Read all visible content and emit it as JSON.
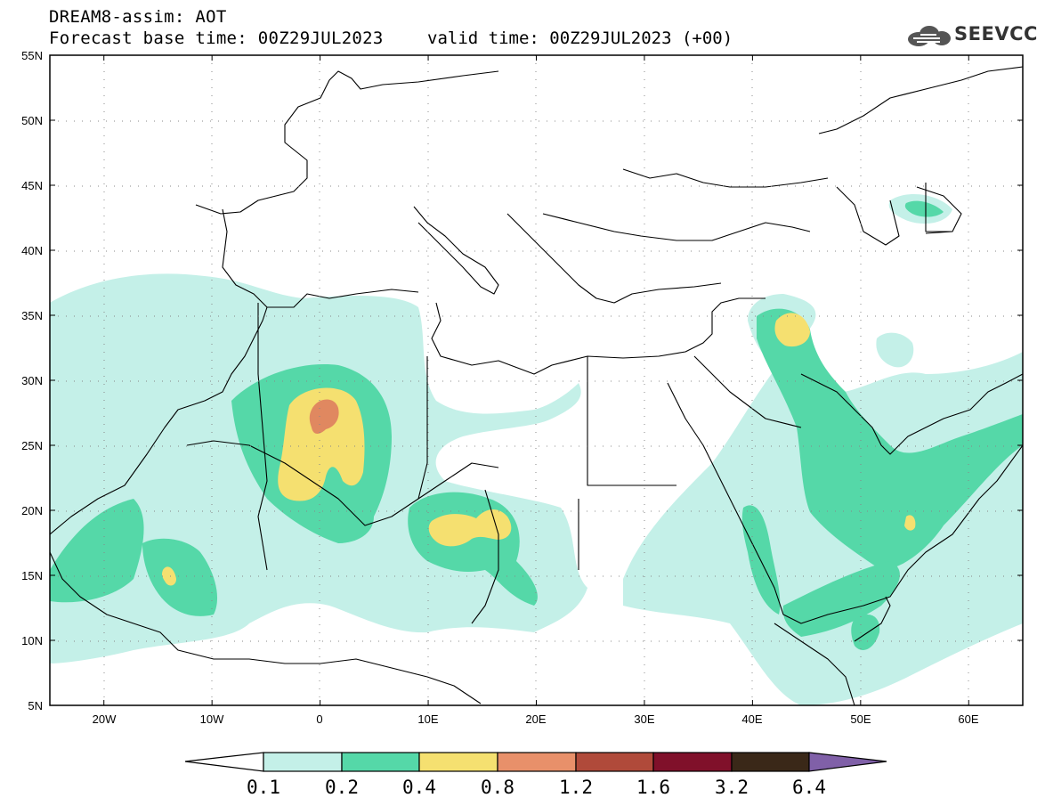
{
  "header": {
    "model_product": "DREAM8-assim: AOT",
    "base_time": "Forecast base time: 00Z29JUL2023",
    "valid_time": "valid time: 00Z29JUL2023 (+00)",
    "logo_text": "SEEVCCC"
  },
  "map": {
    "lat_labels": [
      "55N",
      "50N",
      "45N",
      "40N",
      "35N",
      "30N",
      "25N",
      "20N",
      "15N",
      "10N",
      "5N"
    ],
    "lon_labels": [
      "20W",
      "10W",
      "0",
      "10E",
      "20E",
      "30E",
      "40E",
      "50E",
      "60E"
    ],
    "lat_range": [
      5,
      55
    ],
    "lon_range": [
      -25,
      65
    ],
    "field_colors": {
      "l1": "#c4f0e8",
      "l2": "#55d8a8",
      "l3": "#f5e070",
      "l4": "#e08860"
    }
  },
  "colorbar": {
    "labels": [
      "0.1",
      "0.2",
      "0.4",
      "0.8",
      "1.2",
      "1.6",
      "3.2",
      "6.4"
    ],
    "colors": [
      "#c4f0e8",
      "#55d8a8",
      "#f5e070",
      "#e8906a",
      "#b04a3a",
      "#80102a",
      "#3a2818",
      "#8060a8"
    ]
  }
}
